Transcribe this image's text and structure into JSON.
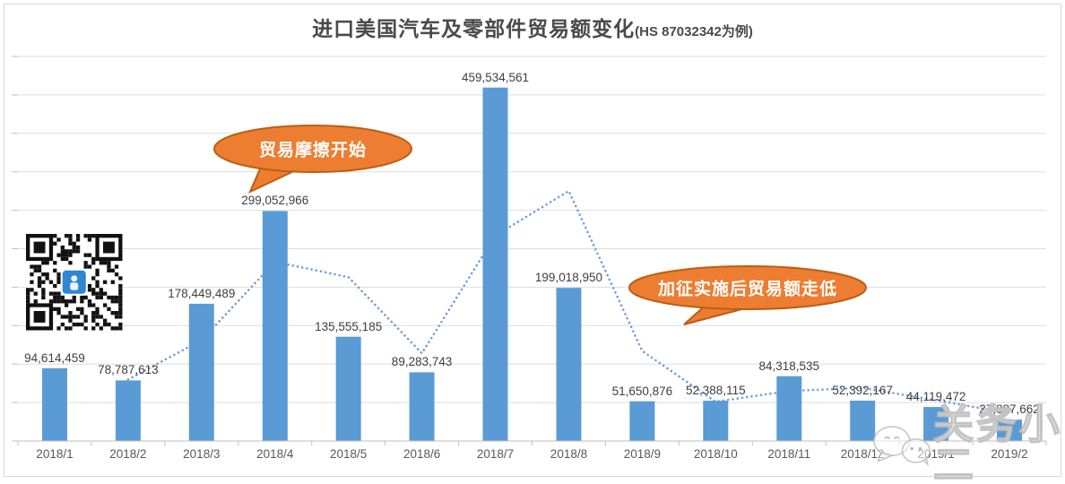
{
  "title": {
    "main": "进口美国汽车及零部件贸易额变化",
    "suffix": "(HS 87032342为例)"
  },
  "chart_data": {
    "type": "bar",
    "title": "进口美国汽车及零部件贸易额变化(HS 87032342为例)",
    "categories": [
      "2018/1",
      "2018/2",
      "2018/3",
      "2018/4",
      "2018/5",
      "2018/6",
      "2018/7",
      "2018/8",
      "2018/9",
      "2018/10",
      "2018/11",
      "2018/12",
      "2019/1",
      "2019/2"
    ],
    "series": [
      {
        "name": "trade_value_bars",
        "type": "bar",
        "color": "#5B9BD5",
        "values": [
          94614459,
          78787613,
          178449489,
          299052966,
          135555185,
          89283743,
          459534561,
          199018950,
          51650876,
          52388115,
          84318535,
          52392167,
          44119472,
          27887662
        ],
        "data_labels": [
          "94,614,459",
          "78,787,613",
          "178,449,489",
          "299,052,966",
          "135,555,185",
          "89,283,743",
          "459,534,561",
          "199,018,950",
          "51,650,876",
          "52,388,115",
          "84,318,535",
          "52,392,167",
          "44,119,472",
          "27,887,662"
        ]
      },
      {
        "name": "dotted_trend_line_unlabeled",
        "type": "line",
        "line_style": "dotted",
        "estimated": true,
        "color": "#6FA0D8",
        "values": [
          null,
          80000000,
          131000000,
          233000000,
          213000000,
          114000000,
          267000000,
          325000000,
          117000000,
          51000000,
          65000000,
          69000000,
          53000000,
          36000000
        ]
      }
    ],
    "ylim": [
      0,
      500000000
    ],
    "y_major_unit": 50000000,
    "grid": true,
    "legend": "none",
    "y_axis_labels_visible": false
  },
  "annotations": {
    "callout_trade_friction": {
      "text": "贸易摩擦开始"
    },
    "callout_tariff": {
      "text": "加征实施后贸易额走低"
    }
  },
  "watermark": {
    "text": "关务小二"
  },
  "colors": {
    "bar": "#5B9BD5",
    "dotted_line": "#6FA0D8",
    "callout_fill": "#ED7D31",
    "callout_stroke": "#BC5E15",
    "gridline": "#DEDEDE",
    "axis": "#BFBFBF",
    "data_label_text": "#3F3F3F",
    "axis_label_text": "#595959",
    "title_text": "#4A4A4A"
  }
}
